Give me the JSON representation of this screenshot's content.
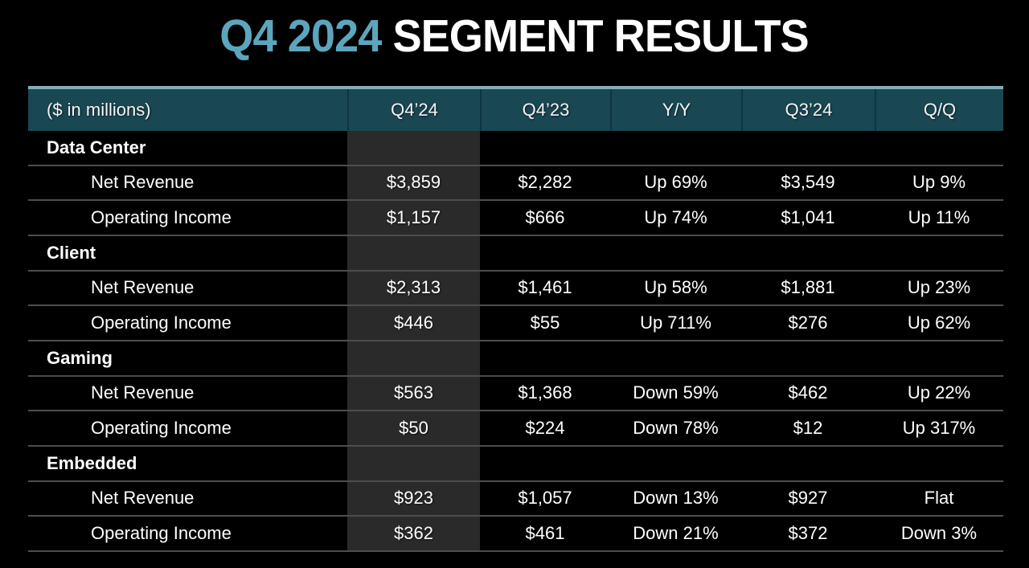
{
  "title": {
    "accent": "Q4 2024",
    "rest": " SEGMENT RESULTS"
  },
  "colors": {
    "background": "#000000",
    "title_accent": "#5ca6bd",
    "title_text": "#ffffff",
    "header_topline": "#83aebc",
    "header_background": "#194752",
    "header_divider": "#0f3540",
    "highlight_column_background": "#2a2a2b",
    "row_divider": "#4d4d4d",
    "body_text": "#ffffff"
  },
  "table": {
    "unit_label": "($ in millions)",
    "columns": [
      "($ in millions)",
      "Q4’24",
      "Q4’23",
      "Y/Y",
      "Q3’24",
      "Q/Q"
    ],
    "highlighted_column": "Q4’24",
    "segments": [
      {
        "name": "Data Center",
        "rows": [
          {
            "label": "Net Revenue",
            "values": [
              "$3,859",
              "$2,282",
              "Up 69%",
              "$3,549",
              "Up 9%"
            ]
          },
          {
            "label": "Operating Income",
            "values": [
              "$1,157",
              "$666",
              "Up 74%",
              "$1,041",
              "Up 11%"
            ]
          }
        ]
      },
      {
        "name": "Client",
        "rows": [
          {
            "label": "Net Revenue",
            "values": [
              "$2,313",
              "$1,461",
              "Up 58%",
              "$1,881",
              "Up 23%"
            ]
          },
          {
            "label": "Operating Income",
            "values": [
              "$446",
              "$55",
              "Up 711%",
              "$276",
              "Up 62%"
            ]
          }
        ]
      },
      {
        "name": "Gaming",
        "rows": [
          {
            "label": "Net Revenue",
            "values": [
              "$563",
              "$1,368",
              "Down 59%",
              "$462",
              "Up 22%"
            ]
          },
          {
            "label": "Operating Income",
            "values": [
              "$50",
              "$224",
              "Down 78%",
              "$12",
              "Up 317%"
            ]
          }
        ]
      },
      {
        "name": "Embedded",
        "rows": [
          {
            "label": "Net Revenue",
            "values": [
              "$923",
              "$1,057",
              "Down 13%",
              "$927",
              "Flat"
            ]
          },
          {
            "label": "Operating Income",
            "values": [
              "$362",
              "$461",
              "Down 21%",
              "$372",
              "Down 3%"
            ]
          }
        ]
      }
    ]
  }
}
